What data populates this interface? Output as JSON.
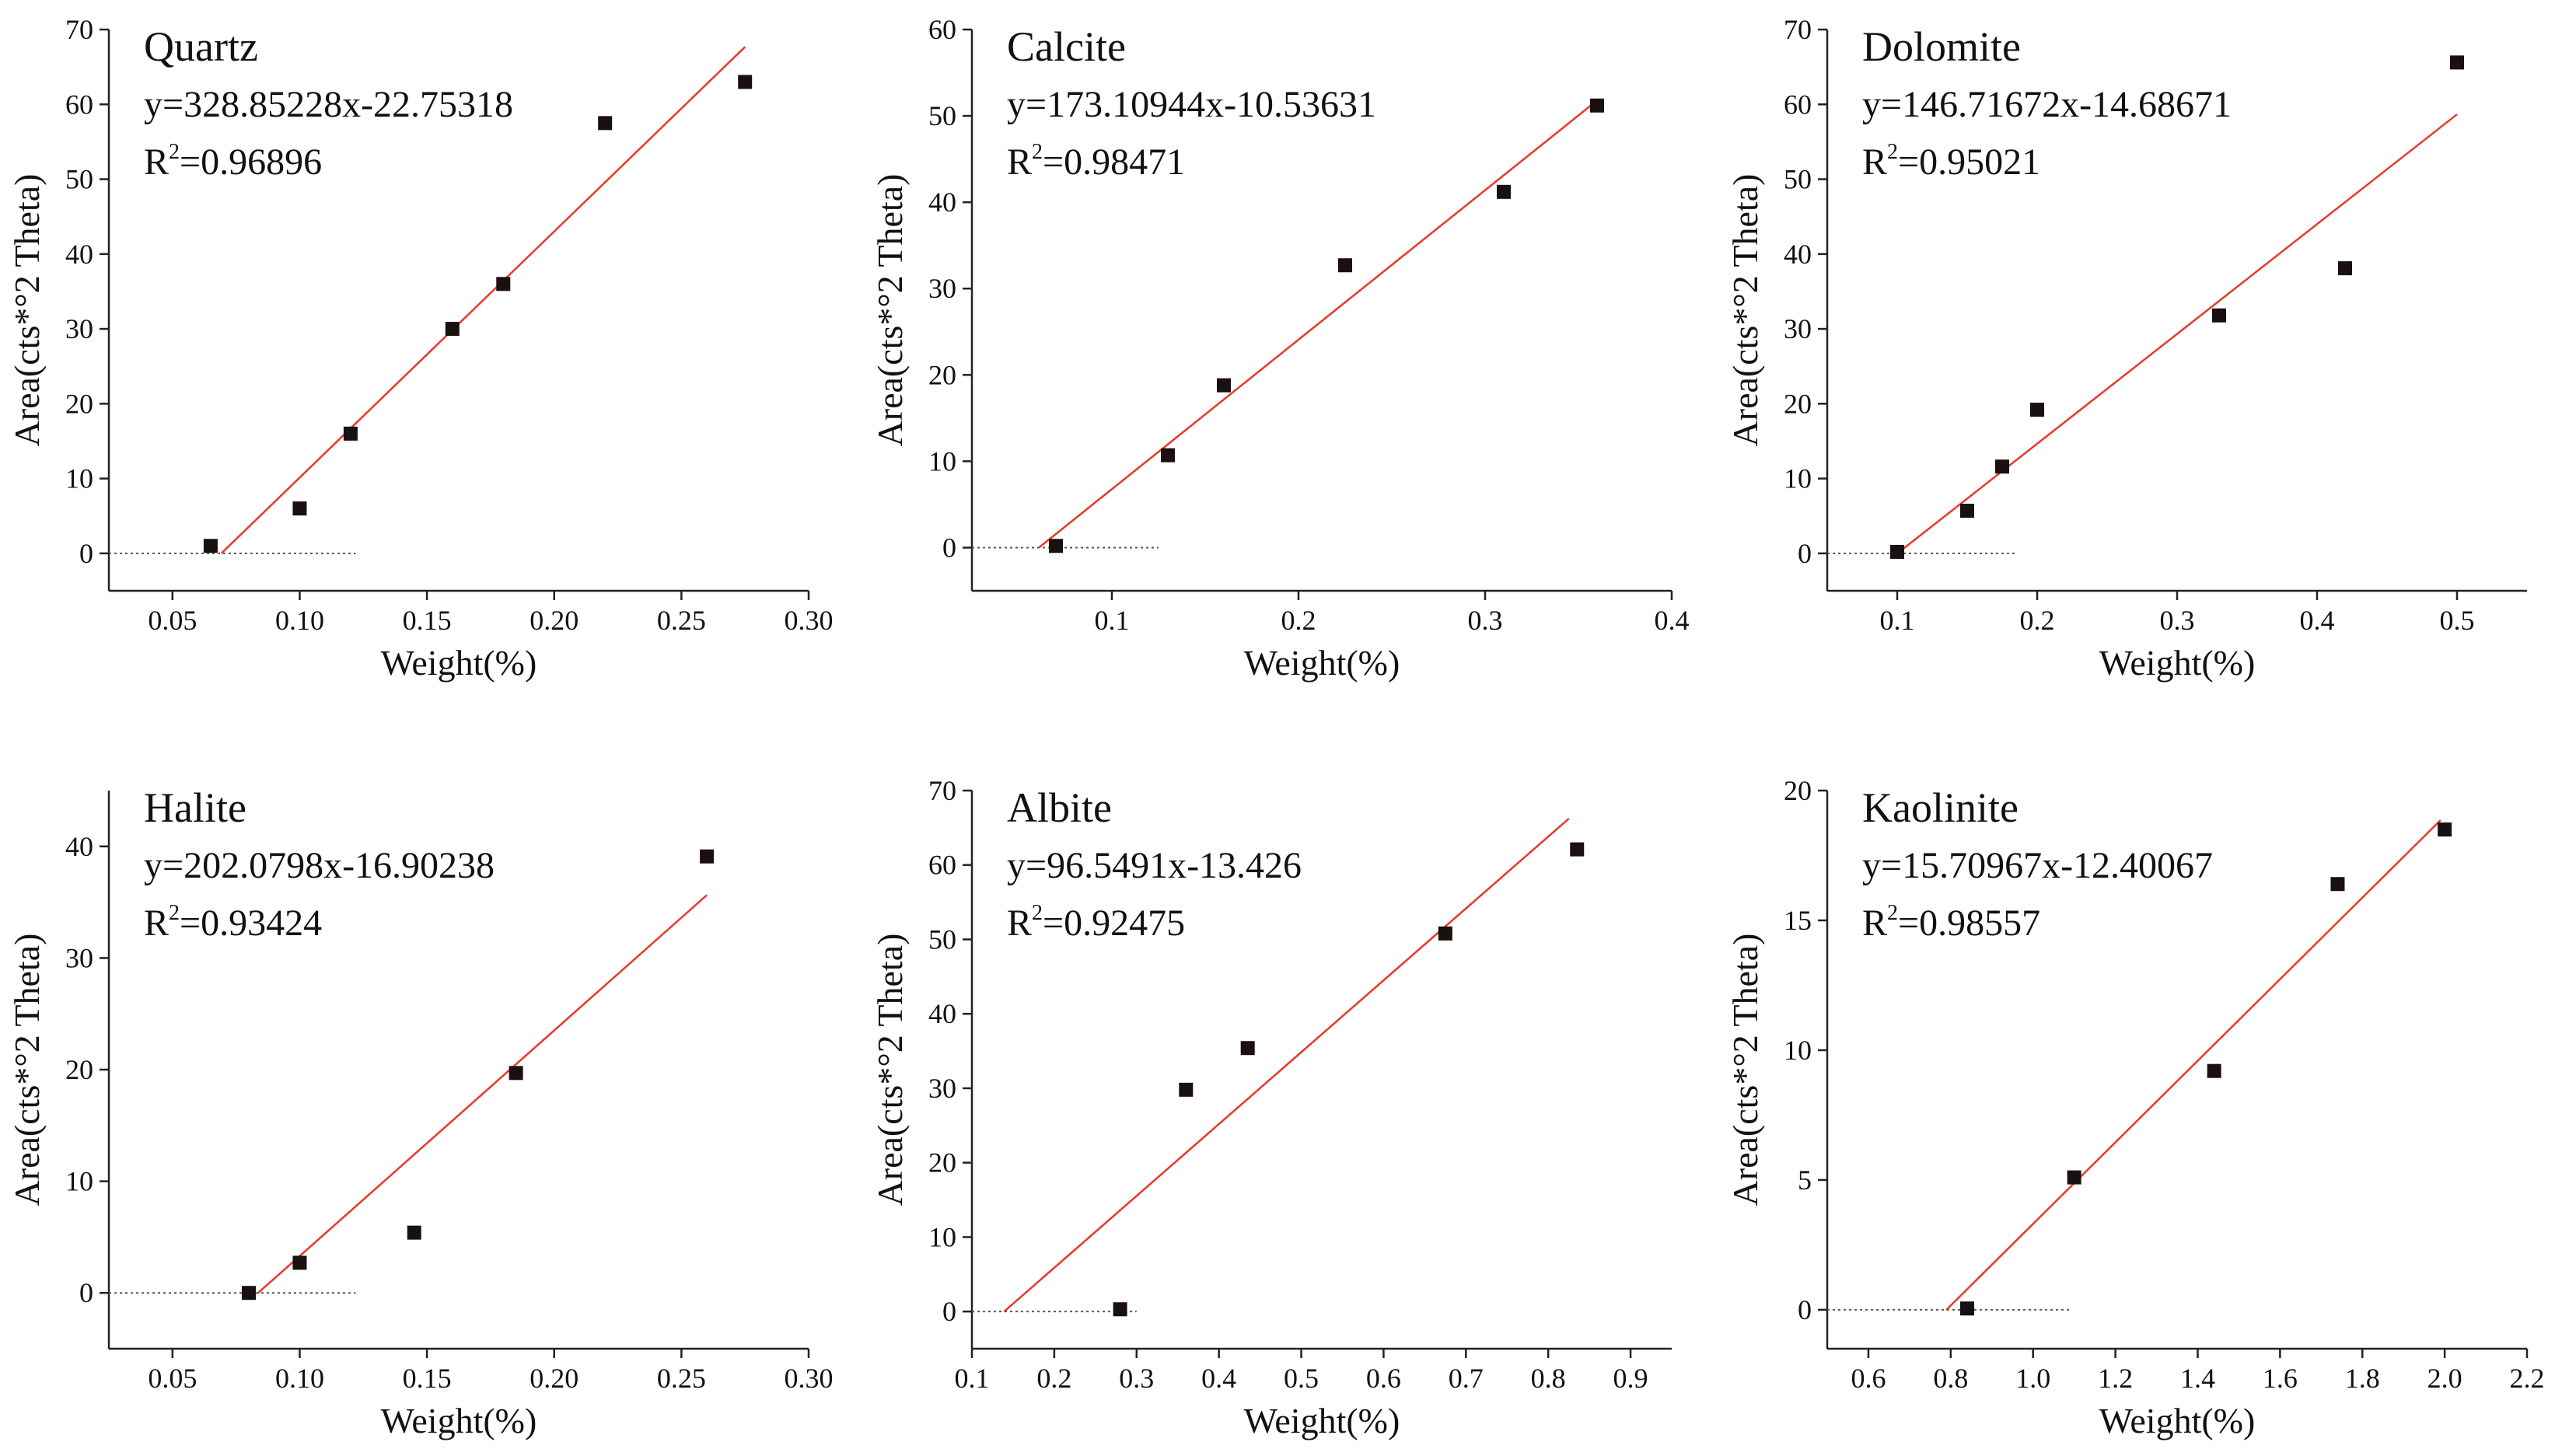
{
  "colors": {
    "axis": "#222222",
    "point": "#1a1010",
    "fit_line": "#e8392b",
    "baseline": "#555555"
  },
  "chart_data": [
    {
      "type": "scatter",
      "title": "Quartz",
      "equation": "y=328.85228x-22.75318",
      "r2_prefix": "R",
      "r2_sup": "2",
      "r2_value": "=0.96896",
      "xlabel": "Weight(%)",
      "ylabel": "Area(cts*°2 Theta)",
      "xlim": [
        0.025,
        0.3
      ],
      "ylim": [
        -5,
        70
      ],
      "xticks": [
        0.05,
        0.1,
        0.15,
        0.2,
        0.25,
        0.3
      ],
      "xtick_labels": [
        "0.05",
        "0.10",
        "0.15",
        "0.20",
        "0.25",
        "0.30"
      ],
      "yticks": [
        0,
        10,
        20,
        30,
        40,
        50,
        60,
        70
      ],
      "ytick_labels": [
        "0",
        "10",
        "20",
        "30",
        "40",
        "50",
        "60",
        "70"
      ],
      "points": {
        "x": [
          0.065,
          0.1,
          0.12,
          0.16,
          0.18,
          0.22,
          0.275
        ],
        "y": [
          1,
          6,
          16,
          30,
          36,
          57.5,
          63
        ]
      },
      "fit": {
        "slope": 328.85228,
        "intercept": -22.75318,
        "x_range": [
          0.0692,
          0.275
        ]
      },
      "baseline": {
        "y": 0,
        "x_range": [
          0.025,
          0.122
        ]
      }
    },
    {
      "type": "scatter",
      "title": "Calcite",
      "equation": "y=173.10944x-10.53631",
      "r2_prefix": "R",
      "r2_sup": "2",
      "r2_value": "=0.98471",
      "xlabel": "Weight(%)",
      "ylabel": "Area(cts*°2 Theta)",
      "xlim": [
        0.025,
        0.4
      ],
      "ylim": [
        -5,
        60
      ],
      "xticks": [
        0.1,
        0.2,
        0.3,
        0.4
      ],
      "xtick_labels": [
        "0.1",
        "0.2",
        "0.3",
        "0.4"
      ],
      "yticks": [
        0,
        10,
        20,
        30,
        40,
        50,
        60
      ],
      "ytick_labels": [
        "0",
        "10",
        "20",
        "30",
        "40",
        "50",
        "60"
      ],
      "points": {
        "x": [
          0.07,
          0.13,
          0.16,
          0.225,
          0.31,
          0.36
        ],
        "y": [
          0.2,
          10.7,
          18.8,
          32.7,
          41.2,
          51.2
        ]
      },
      "fit": {
        "slope": 173.10944,
        "intercept": -10.53631,
        "x_range": [
          0.0609,
          0.36
        ]
      },
      "baseline": {
        "y": 0,
        "x_range": [
          0.025,
          0.125
        ]
      }
    },
    {
      "type": "scatter",
      "title": "Dolomite",
      "equation": "y=146.71672x-14.68671",
      "r2_prefix": "R",
      "r2_sup": "2",
      "r2_value": "=0.95021",
      "xlabel": "Weight(%)",
      "ylabel": "Area(cts*°2 Theta)",
      "xlim": [
        0.05,
        0.55
      ],
      "ylim": [
        -5,
        70
      ],
      "xticks": [
        0.1,
        0.2,
        0.3,
        0.4,
        0.5
      ],
      "xtick_labels": [
        "0.1",
        "0.2",
        "0.3",
        "0.4",
        "0.5"
      ],
      "yticks": [
        0,
        10,
        20,
        30,
        40,
        50,
        60,
        70
      ],
      "ytick_labels": [
        "0",
        "10",
        "20",
        "30",
        "40",
        "50",
        "60",
        "70"
      ],
      "points": {
        "x": [
          0.1,
          0.15,
          0.175,
          0.2,
          0.33,
          0.42,
          0.5
        ],
        "y": [
          0.2,
          5.7,
          11.6,
          19.2,
          31.8,
          38.1,
          65.6
        ]
      },
      "fit": {
        "slope": 146.71672,
        "intercept": -14.68671,
        "x_range": [
          0.1001,
          0.5
        ]
      },
      "baseline": {
        "y": 0,
        "x_range": [
          0.05,
          0.185
        ]
      }
    },
    {
      "type": "scatter",
      "title": "Halite",
      "equation": "y=202.0798x-16.90238",
      "r2_prefix": "R",
      "r2_sup": "2",
      "r2_value": "=0.93424",
      "xlabel": "Weight(%)",
      "ylabel": "Area(cts*°2 Theta)",
      "xlim": [
        0.025,
        0.3
      ],
      "ylim": [
        -5,
        45
      ],
      "xticks": [
        0.05,
        0.1,
        0.15,
        0.2,
        0.25,
        0.3
      ],
      "xtick_labels": [
        "0.05",
        "0.10",
        "0.15",
        "0.20",
        "0.25",
        "0.30"
      ],
      "yticks": [
        0,
        10,
        20,
        30,
        40
      ],
      "ytick_labels": [
        "0",
        "10",
        "20",
        "30",
        "40"
      ],
      "points": {
        "x": [
          0.08,
          0.1,
          0.145,
          0.185,
          0.26
        ],
        "y": [
          0,
          2.7,
          5.4,
          19.7,
          39.1
        ]
      },
      "fit": {
        "slope": 202.0798,
        "intercept": -16.90238,
        "x_range": [
          0.0836,
          0.26
        ]
      },
      "baseline": {
        "y": 0,
        "x_range": [
          0.025,
          0.122
        ]
      }
    },
    {
      "type": "scatter",
      "title": "Albite",
      "equation": "y=96.5491x-13.426",
      "r2_prefix": "R",
      "r2_sup": "2",
      "r2_value": "=0.92475",
      "xlabel": "Weight(%)",
      "ylabel": "Area(cts*°2 Theta)",
      "xlim": [
        0.1,
        0.95
      ],
      "ylim": [
        -5,
        70
      ],
      "xticks": [
        0.1,
        0.2,
        0.3,
        0.4,
        0.5,
        0.6,
        0.7,
        0.8,
        0.9
      ],
      "xtick_labels": [
        "0.1",
        "0.2",
        "0.3",
        "0.4",
        "0.5",
        "0.6",
        "0.7",
        "0.8",
        "0.9"
      ],
      "yticks": [
        0,
        10,
        20,
        30,
        40,
        50,
        60,
        70
      ],
      "ytick_labels": [
        "0",
        "10",
        "20",
        "30",
        "40",
        "50",
        "60",
        "70"
      ],
      "points": {
        "x": [
          0.28,
          0.36,
          0.435,
          0.675,
          0.835
        ],
        "y": [
          0.3,
          29.8,
          35.4,
          50.8,
          62.1
        ]
      },
      "fit": {
        "slope": 96.5491,
        "intercept": -13.426,
        "x_range": [
          0.139,
          0.825
        ]
      },
      "baseline": {
        "y": 0,
        "x_range": [
          0.1,
          0.3
        ]
      }
    },
    {
      "type": "scatter",
      "title": "Kaolinite",
      "equation": "y=15.70967x-12.40067",
      "r2_prefix": "R",
      "r2_sup": "2",
      "r2_value": "=0.98557",
      "xlabel": "Weight(%)",
      "ylabel": "Area(cts*°2 Theta)",
      "xlim": [
        0.5,
        2.2
      ],
      "ylim": [
        -1.5,
        20
      ],
      "xticks": [
        0.6,
        0.8,
        1.0,
        1.2,
        1.4,
        1.6,
        1.8,
        2.0,
        2.2
      ],
      "xtick_labels": [
        "0.6",
        "0.8",
        "1.0",
        "1.2",
        "1.4",
        "1.6",
        "1.8",
        "2.0",
        "2.2"
      ],
      "yticks": [
        0,
        5,
        10,
        15,
        20
      ],
      "ytick_labels": [
        "0",
        "5",
        "10",
        "15",
        "20"
      ],
      "points": {
        "x": [
          0.84,
          1.1,
          1.44,
          1.74,
          2.0
        ],
        "y": [
          0.05,
          5.1,
          9.2,
          16.4,
          18.5
        ]
      },
      "fit": {
        "slope": 15.70967,
        "intercept": -12.40067,
        "x_range": [
          0.789,
          1.99
        ]
      },
      "baseline": {
        "y": 0,
        "x_range": [
          0.5,
          1.09
        ]
      }
    }
  ]
}
